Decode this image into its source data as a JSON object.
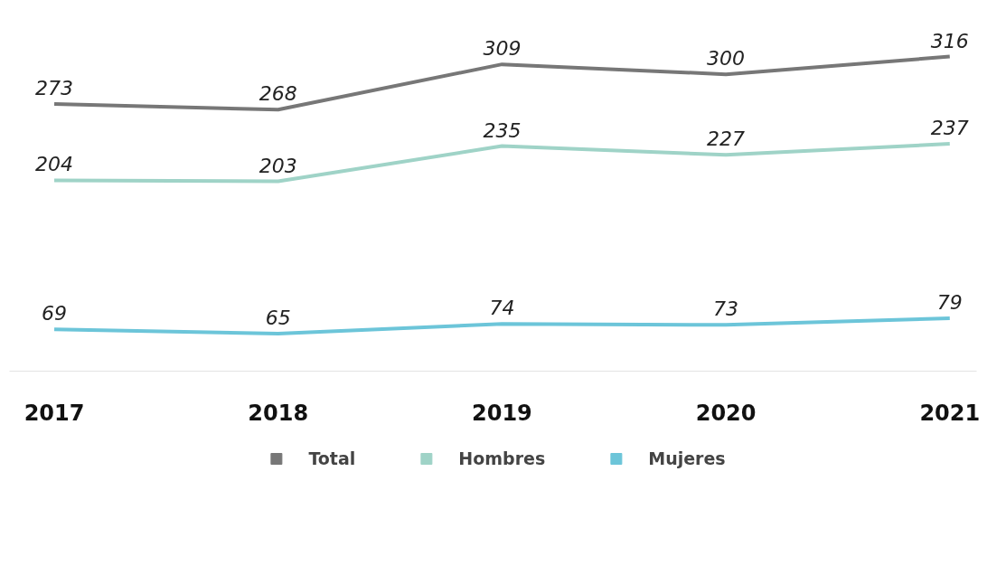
{
  "chart_data": {
    "type": "line",
    "categories": [
      "2017",
      "2018",
      "2019",
      "2020",
      "2021"
    ],
    "series": [
      {
        "name": "Total",
        "color": "#777777",
        "values": [
          273,
          268,
          309,
          300,
          316
        ]
      },
      {
        "name": "Hombres",
        "color": "#9fd3c7",
        "values": [
          204,
          203,
          235,
          227,
          237
        ]
      },
      {
        "name": "Mujeres",
        "color": "#6cc5d9",
        "values": [
          69,
          65,
          74,
          73,
          79
        ]
      }
    ],
    "data_labels": true,
    "legend": "bottom",
    "grid": false,
    "marker": "none",
    "line_style": "solid"
  }
}
